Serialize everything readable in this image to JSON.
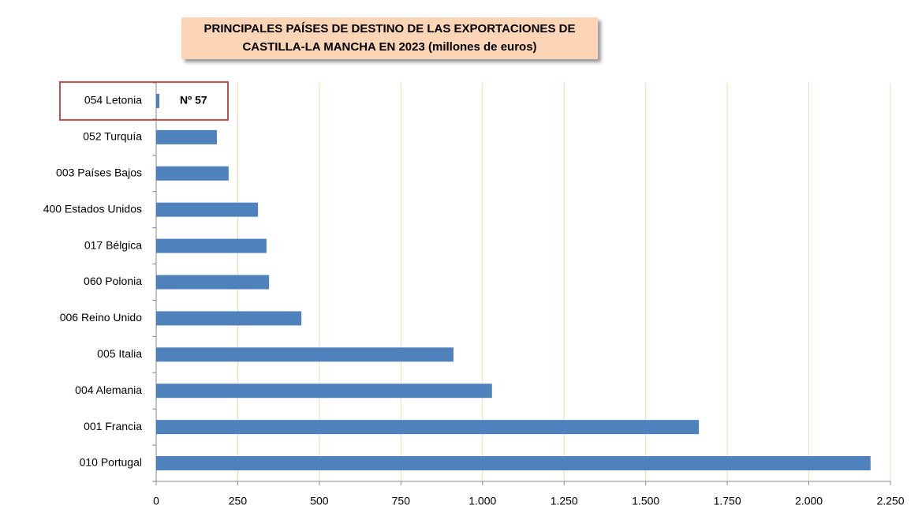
{
  "chart_data": {
    "type": "bar",
    "orientation": "horizontal",
    "title": [
      "PRINCIPALES PAÍSES DE DESTINO DE LAS EXPORTACIONES DE",
      "CASTILLA-LA MANCHA EN 2023 (millones de euros)"
    ],
    "categories": [
      "054 Letonia",
      "052 Turquía",
      "003 Países Bajos",
      "400 Estados Unidos",
      "017 Bélgica",
      "060 Polonia",
      "006 Reino Unido",
      "005 Italia",
      "004 Alemania",
      "001 Francia",
      "010 Portugal"
    ],
    "values": [
      10,
      186,
      222,
      312,
      338,
      346,
      445,
      911,
      1029,
      1663,
      2189
    ],
    "color": "#4f81bd",
    "annotation": "Nº 57",
    "xlim": [
      0,
      2250
    ],
    "xticks": [
      0,
      250,
      500,
      750,
      {
        "value": 1000,
        "label": "1.000"
      },
      {
        "value": 1250,
        "label": "1.250"
      },
      {
        "value": 1500,
        "label": "1.500"
      },
      {
        "value": 1750,
        "label": "1.750"
      },
      {
        "value": 2000,
        "label": "2.000"
      },
      {
        "value": 2250,
        "label": "2.250"
      }
    ],
    "grid": true,
    "grid_color": "#f4d9b0"
  }
}
